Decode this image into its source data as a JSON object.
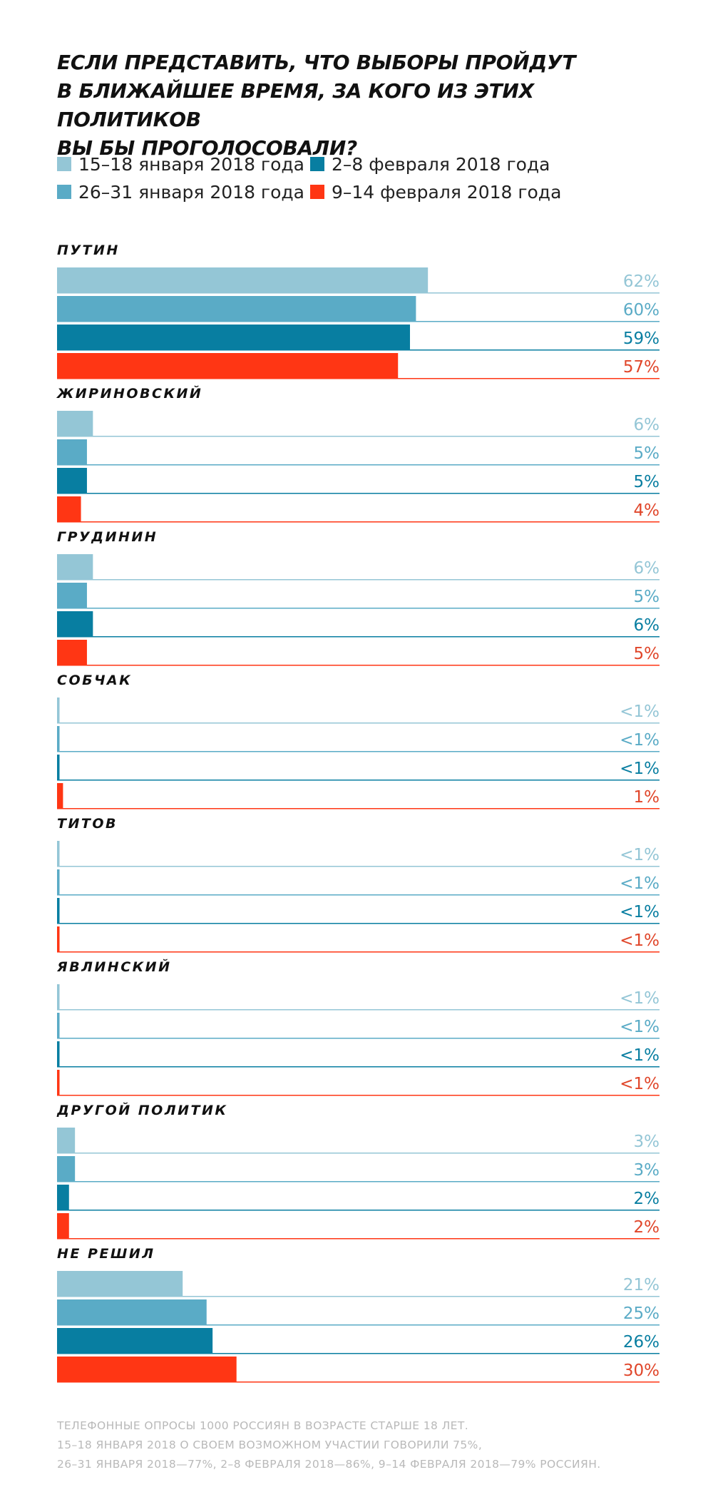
{
  "chart_data": {
    "type": "bar",
    "orientation": "horizontal",
    "title": "ЕСЛИ ПРЕДСТАВИТЬ, ЧТО ВЫБОРЫ ПРОЙДУТ В БЛИЖАЙШЕЕ ВРЕМЯ, ЗА КОГО ИЗ ЭТИХ ПОЛИТИКОВ ВЫ БЫ ПРОГОЛОСОВАЛИ?",
    "title_lines": [
      "ЕСЛИ ПРЕДСТАВИТЬ, ЧТО ВЫБОРЫ ПРОЙДУТ",
      "В БЛИЖАЙШЕЕ ВРЕМЯ, ЗА КОГО ИЗ ЭТИХ ПОЛИТИКОВ",
      "ВЫ БЫ ПРОГОЛОСОВАЛИ?"
    ],
    "unit": "%",
    "xlim": [
      0,
      100
    ],
    "grid": false,
    "legend_position": "top-left",
    "categories": [
      "ПУТИН",
      "ЖИРИНОВСКИЙ",
      "ГРУДИНИН",
      "СОБЧАК",
      "ТИТОВ",
      "ЯВЛИНСКИЙ",
      "ДРУГОЙ ПОЛИТИК",
      "НЕ РЕШИЛ"
    ],
    "series": [
      {
        "name": "15–18 января 2018 года",
        "color": "#94c6d6",
        "values": [
          62,
          6,
          6,
          0.4,
          0.4,
          0.4,
          3,
          21
        ],
        "labels": [
          "62%",
          "6%",
          "6%",
          "<1%",
          "<1%",
          "<1%",
          "3%",
          "21%"
        ]
      },
      {
        "name": "26–31 января 2018 года",
        "color": "#5aabc6",
        "values": [
          60,
          5,
          5,
          0.4,
          0.4,
          0.4,
          3,
          25
        ],
        "labels": [
          "60%",
          "5%",
          "5%",
          "<1%",
          "<1%",
          "<1%",
          "3%",
          "25%"
        ]
      },
      {
        "name": "2–8 февраля 2018 года",
        "color": "#087ea1",
        "values": [
          59,
          5,
          6,
          0.4,
          0.4,
          0.4,
          2,
          26
        ],
        "labels": [
          "59%",
          "5%",
          "6%",
          "<1%",
          "<1%",
          "<1%",
          "2%",
          "26%"
        ]
      },
      {
        "name": "9–14 февраля 2018 года",
        "color": "#ff3614",
        "values": [
          57,
          4,
          5,
          1,
          0.4,
          0.4,
          2,
          30
        ],
        "labels": [
          "57%",
          "4%",
          "5%",
          "1%",
          "<1%",
          "<1%",
          "2%",
          "30%"
        ]
      }
    ],
    "label_color_last": "#e0462a",
    "note_lines": [
      "ТЕЛЕФОННЫЕ ОПРОСЫ 1000 РОССИЯН В ВОЗРАСТЕ СТАРШЕ 18 ЛЕТ.",
      "15–18 ЯНВАРЯ 2018 О СВОЕМ ВОЗМОЖНОМ УЧАСТИИ ГОВОРИЛИ 75%,",
      "26–31 ЯНВАРЯ 2018—77%, 2–8 ФЕВРАЛЯ 2018—86%, 9–14 ФЕВРАЛЯ 2018—79% РОССИЯН."
    ]
  }
}
